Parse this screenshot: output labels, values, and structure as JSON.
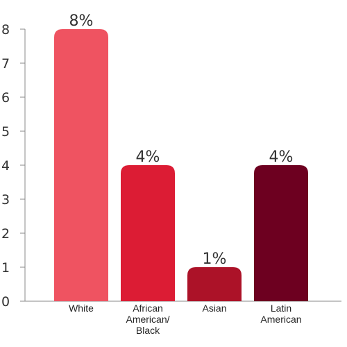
{
  "chart_data": {
    "type": "bar",
    "title": "",
    "xlabel": "",
    "ylabel": "",
    "categories": [
      "White",
      "African American/ Black",
      "Asian",
      "Latin American"
    ],
    "category_label_lines": [
      [
        "White"
      ],
      [
        "African",
        "American/",
        "Black"
      ],
      [
        "Asian"
      ],
      [
        "Latin",
        "American"
      ]
    ],
    "values": [
      8,
      4,
      1,
      4
    ],
    "data_labels": [
      "8%",
      "4%",
      "1%",
      "4%"
    ],
    "bar_colors": [
      "#ef5361",
      "#dc1c34",
      "#ac1228",
      "#6d0020"
    ],
    "yticks": [
      "0",
      "1",
      "2",
      "3",
      "4",
      "5",
      "6",
      "7",
      "8"
    ],
    "ylim": [
      0,
      8
    ],
    "grid": false,
    "legend": "none"
  }
}
